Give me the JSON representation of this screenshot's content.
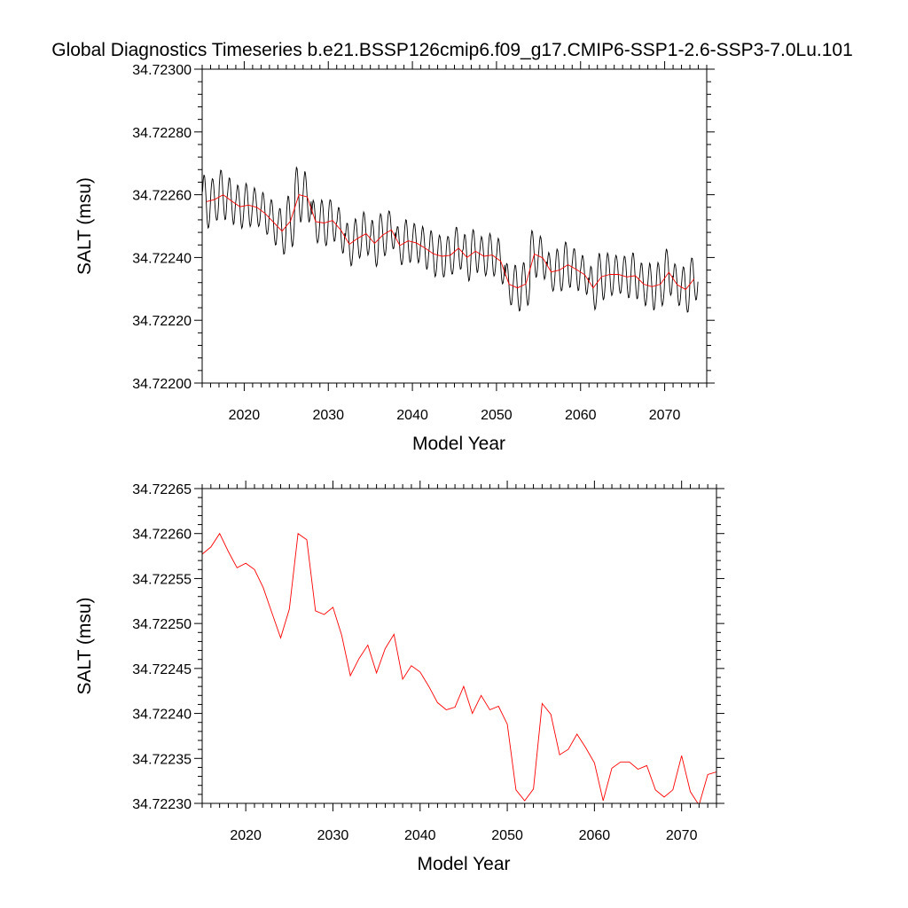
{
  "figure": {
    "title": "Global Diagnostics Timeseries b.e21.BSSP126cmip6.f09_g17.CMIP6-SSP1-2.6-SSP3-7.0Lu.101",
    "line_color": "#000000",
    "series_color": "#ff0000"
  },
  "chart_data": [
    {
      "type": "line",
      "xlabel": "Model Year",
      "ylabel": "SALT (msu)",
      "xlim": [
        2015,
        2075
      ],
      "ylim": [
        34.723,
        34.722
      ],
      "xticks": [
        2020,
        2030,
        2040,
        2050,
        2060,
        2070
      ],
      "yticks": [
        34.722,
        34.7222,
        34.7224,
        34.7226,
        34.7228,
        34.723
      ],
      "ytick_labels": [
        "34.72200",
        "34.72220",
        "34.72240",
        "34.72260",
        "34.72280",
        "34.72300"
      ],
      "grid": false,
      "series": [
        {
          "kind": "monthly",
          "color": "#000000",
          "x_start": 2015.04,
          "step": 0.08333,
          "mean_by_year": [
            34.722578,
            34.722585,
            34.7226,
            34.72258,
            34.722562,
            34.722567,
            34.72256,
            34.72254,
            34.722512,
            34.722484,
            34.722516,
            34.7226,
            34.722593,
            34.722514,
            34.72251,
            34.722518,
            34.722487,
            34.722442,
            34.722461,
            34.722476,
            34.722445,
            34.722472,
            34.722488,
            34.722438,
            34.722453,
            34.722446,
            34.72243,
            34.722412,
            34.722404,
            34.722407,
            34.72243,
            34.7224,
            34.72242,
            34.722404,
            34.722408,
            34.722388,
            34.722315,
            34.722303,
            34.722316,
            34.722411,
            34.722399,
            34.722354,
            34.72236,
            34.722377,
            34.722362,
            34.722345,
            34.722303,
            34.722339,
            34.722346,
            34.722346,
            34.722338,
            34.722342,
            34.722315,
            34.722307,
            34.722315,
            34.722353,
            34.722313,
            34.722298,
            34.722332
          ],
          "amplitude_by_year": [
            0.00014,
            0.00011,
            0.00013,
            0.00012,
            0.00011,
            0.00011,
            0.0001,
            0.00011,
            0.00012,
            0.00012,
            0.00013,
            0.00014,
            0.00013,
            0.00011,
            0.00012,
            0.00011,
            0.00012,
            0.00011,
            0.0001,
            0.00011,
            0.00012,
            0.00011,
            0.0001,
            0.0001,
            0.00011,
            0.0001,
            0.00011,
            0.00012,
            0.00011,
            0.0001,
            0.00011,
            0.00012,
            0.00011,
            0.0001,
            0.00011,
            0.00012,
            0.00011,
            0.00012,
            0.00011,
            0.00012,
            0.00011,
            0.0001,
            0.00011,
            0.00012,
            0.00011,
            0.0001,
            0.00011,
            0.00012,
            0.00011,
            0.0001,
            0.00011,
            0.00012,
            0.00011,
            0.00012,
            0.00011,
            0.00012,
            0.00011,
            0.00012,
            0.00011
          ]
        },
        {
          "kind": "annual",
          "color": "#ff0000",
          "x": [
            2015.5,
            2016.5,
            2017.5,
            2018.5,
            2019.5,
            2020.5,
            2021.5,
            2022.5,
            2023.5,
            2024.5,
            2025.5,
            2026.5,
            2027.5,
            2028.5,
            2029.5,
            2030.5,
            2031.5,
            2032.5,
            2033.5,
            2034.5,
            2035.5,
            2036.5,
            2037.5,
            2038.5,
            2039.5,
            2040.5,
            2041.5,
            2042.5,
            2043.5,
            2044.5,
            2045.5,
            2046.5,
            2047.5,
            2048.5,
            2049.5,
            2050.5,
            2051.5,
            2052.5,
            2053.5,
            2054.5,
            2055.5,
            2056.5,
            2057.5,
            2058.5,
            2059.5,
            2060.5,
            2061.5,
            2062.5,
            2063.5,
            2064.5,
            2065.5,
            2066.5,
            2067.5,
            2068.5,
            2069.5,
            2070.5,
            2071.5,
            2072.5,
            2073.5
          ],
          "y": [
            34.722578,
            34.722585,
            34.7226,
            34.72258,
            34.722562,
            34.722567,
            34.72256,
            34.72254,
            34.722512,
            34.722484,
            34.722516,
            34.7226,
            34.722593,
            34.722514,
            34.72251,
            34.722518,
            34.722487,
            34.722442,
            34.722461,
            34.722476,
            34.722445,
            34.722472,
            34.722488,
            34.722438,
            34.722453,
            34.722446,
            34.72243,
            34.722412,
            34.722404,
            34.722407,
            34.72243,
            34.7224,
            34.72242,
            34.722404,
            34.722408,
            34.722388,
            34.722315,
            34.722303,
            34.722316,
            34.722411,
            34.722399,
            34.722354,
            34.72236,
            34.722377,
            34.722362,
            34.722345,
            34.722303,
            34.722339,
            34.722346,
            34.722346,
            34.722338,
            34.722342,
            34.722315,
            34.722307,
            34.722315,
            34.722353,
            34.722313,
            34.722298,
            34.722332
          ]
        }
      ]
    },
    {
      "type": "line",
      "xlabel": "Model Year",
      "ylabel": "SALT (msu)",
      "xlim": [
        2015,
        2074
      ],
      "ylim": [
        34.7223,
        34.72265
      ],
      "xticks": [
        2020,
        2030,
        2040,
        2050,
        2060,
        2070
      ],
      "yticks": [
        34.7223,
        34.72235,
        34.7224,
        34.72245,
        34.7225,
        34.72255,
        34.7226,
        34.72265
      ],
      "ytick_labels": [
        "34.72230",
        "34.72235",
        "34.72240",
        "34.72245",
        "34.72250",
        "34.72255",
        "34.72260",
        "34.72265"
      ],
      "grid": false,
      "series": [
        {
          "kind": "annual",
          "color": "#ff0000",
          "x": [
            2015.0,
            2016.0,
            2017.0,
            2018.0,
            2019.0,
            2020.0,
            2021.0,
            2022.0,
            2023.0,
            2024.0,
            2025.0,
            2026.0,
            2027.0,
            2028.0,
            2029.0,
            2030.0,
            2031.0,
            2032.0,
            2033.0,
            2034.0,
            2035.0,
            2036.0,
            2037.0,
            2038.0,
            2039.0,
            2040.0,
            2041.0,
            2042.0,
            2043.0,
            2044.0,
            2045.0,
            2046.0,
            2047.0,
            2048.0,
            2049.0,
            2050.0,
            2051.0,
            2052.0,
            2053.0,
            2054.0,
            2055.0,
            2056.0,
            2057.0,
            2058.0,
            2059.0,
            2060.0,
            2061.0,
            2062.0,
            2063.0,
            2064.0,
            2065.0,
            2066.0,
            2067.0,
            2068.0,
            2069.0,
            2070.0,
            2071.0,
            2072.0,
            2073.0,
            2074.0
          ],
          "y": [
            34.722577,
            34.722585,
            34.7226,
            34.72258,
            34.722562,
            34.722567,
            34.72256,
            34.72254,
            34.722512,
            34.722484,
            34.722516,
            34.7226,
            34.722593,
            34.722514,
            34.72251,
            34.722518,
            34.722487,
            34.722442,
            34.722461,
            34.722476,
            34.722445,
            34.722472,
            34.722488,
            34.722438,
            34.722453,
            34.722446,
            34.72243,
            34.722412,
            34.722404,
            34.722407,
            34.72243,
            34.7224,
            34.72242,
            34.722404,
            34.722408,
            34.722388,
            34.722315,
            34.722303,
            34.722316,
            34.722411,
            34.722399,
            34.722354,
            34.72236,
            34.722377,
            34.722362,
            34.722345,
            34.722303,
            34.722339,
            34.722346,
            34.722346,
            34.722338,
            34.722342,
            34.722315,
            34.722307,
            34.722315,
            34.722353,
            34.722313,
            34.722298,
            34.722332,
            34.722335
          ]
        }
      ]
    }
  ]
}
